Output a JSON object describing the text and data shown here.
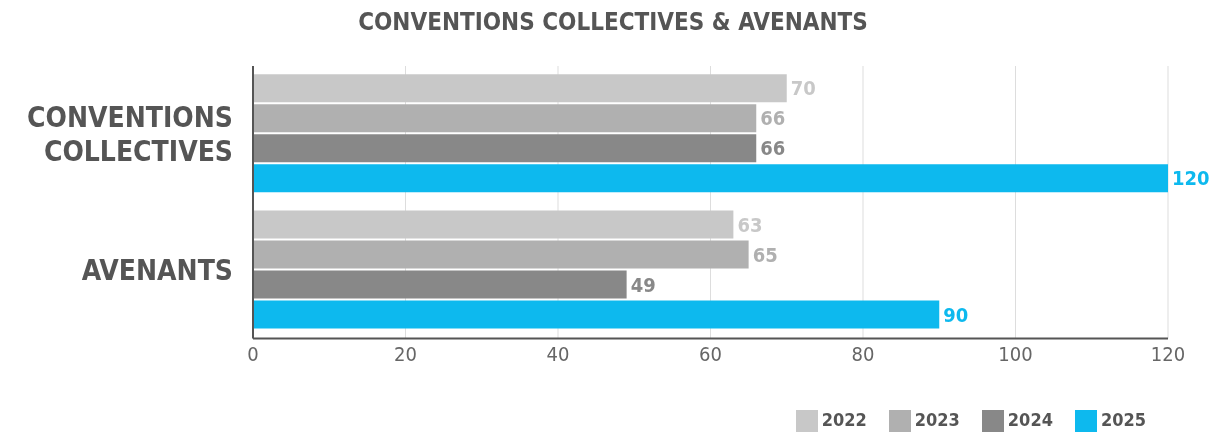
{
  "chart_data": {
    "type": "bar",
    "orientation": "horizontal",
    "title": "CONVENTIONS COLLECTIVES & AVENANTS",
    "categories": [
      "CONVENTIONS COLLECTIVES",
      "AVENANTS"
    ],
    "series": [
      {
        "name": "2022",
        "color": "#c8c8c8",
        "values": [
          70,
          63
        ]
      },
      {
        "name": "2023",
        "color": "#b0b0b0",
        "values": [
          66,
          65
        ]
      },
      {
        "name": "2024",
        "color": "#888888",
        "values": [
          66,
          49
        ]
      },
      {
        "name": "2025",
        "color": "#0db9ee",
        "values": [
          120,
          90
        ]
      }
    ],
    "xlim": [
      0,
      120
    ],
    "xticks": [
      0,
      20,
      40,
      60,
      80,
      100,
      120
    ],
    "grid": "x",
    "legend": "bottom right",
    "data_labels": true
  }
}
